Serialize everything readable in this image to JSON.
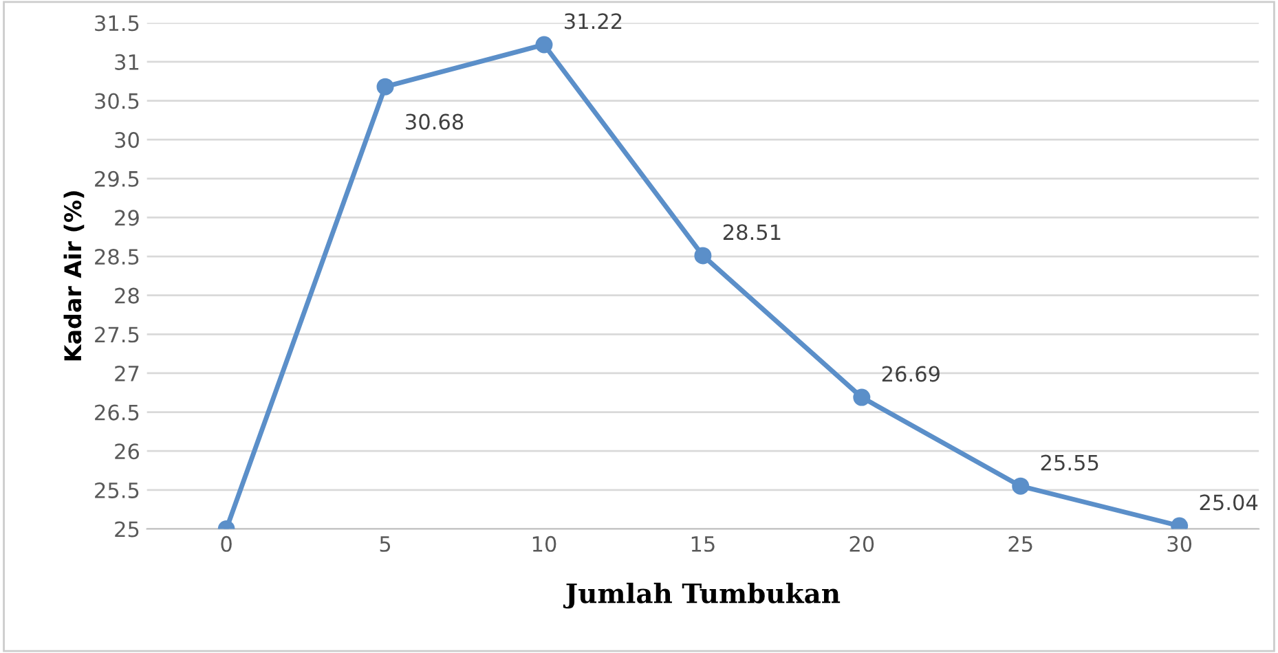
{
  "chart_data": {
    "type": "line",
    "xlabel": "Jumlah Tumbukan",
    "ylabel": "Kadar Air (%)",
    "categories": [
      "0",
      "5",
      "10",
      "15",
      "20",
      "25",
      "30"
    ],
    "series": [
      {
        "color": "#5b8fc9",
        "values": [
          25,
          30.68,
          31.22,
          28.51,
          26.69,
          25.55,
          25.04
        ],
        "value_labels": [
          null,
          "30.68",
          "31.22",
          "28.51",
          "26.69",
          "25.55",
          "25.04"
        ]
      }
    ],
    "ylim": [
      25,
      31.5
    ],
    "yticks": [
      25,
      25.5,
      26,
      26.5,
      27,
      27.5,
      28,
      28.5,
      29,
      29.5,
      30,
      30.5,
      31,
      31.5
    ],
    "grid": "y",
    "marker": "circle",
    "line_style": "solid"
  }
}
